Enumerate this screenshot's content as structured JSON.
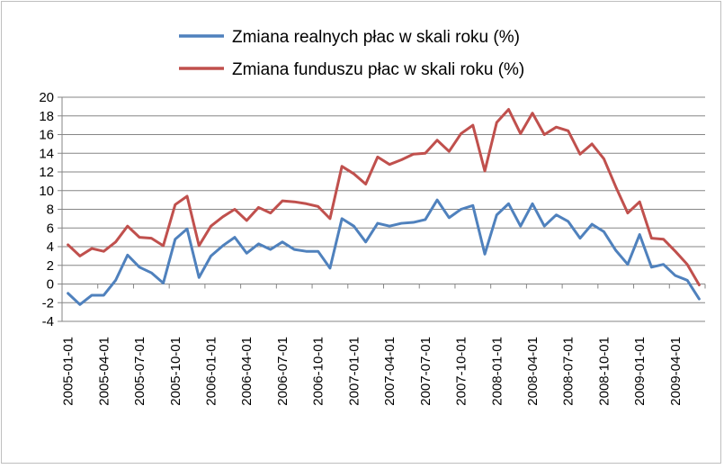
{
  "chart_data": {
    "type": "line",
    "title": "",
    "xlabel": "",
    "ylabel": "",
    "ylim": [
      -4,
      20
    ],
    "yticks": [
      -4,
      -2,
      0,
      2,
      4,
      6,
      8,
      10,
      12,
      14,
      16,
      18,
      20
    ],
    "grid": true,
    "legend_position": "top",
    "x": [
      "2005-01-01",
      "2005-02-01",
      "2005-03-01",
      "2005-04-01",
      "2005-05-01",
      "2005-06-01",
      "2005-07-01",
      "2005-08-01",
      "2005-09-01",
      "2005-10-01",
      "2005-11-01",
      "2005-12-01",
      "2006-01-01",
      "2006-02-01",
      "2006-03-01",
      "2006-04-01",
      "2006-05-01",
      "2006-06-01",
      "2006-07-01",
      "2006-08-01",
      "2006-09-01",
      "2006-10-01",
      "2006-11-01",
      "2006-12-01",
      "2007-01-01",
      "2007-02-01",
      "2007-03-01",
      "2007-04-01",
      "2007-05-01",
      "2007-06-01",
      "2007-07-01",
      "2007-08-01",
      "2007-09-01",
      "2007-10-01",
      "2007-11-01",
      "2007-12-01",
      "2008-01-01",
      "2008-02-01",
      "2008-03-01",
      "2008-04-01",
      "2008-05-01",
      "2008-06-01",
      "2008-07-01",
      "2008-08-01",
      "2008-09-01",
      "2008-10-01",
      "2008-11-01",
      "2008-12-01",
      "2009-01-01",
      "2009-02-01",
      "2009-03-01",
      "2009-04-01",
      "2009-05-01",
      "2009-06-01"
    ],
    "xtick_labels": [
      "2005-01-01",
      "2005-04-01",
      "2005-07-01",
      "2005-10-01",
      "2006-01-01",
      "2006-04-01",
      "2006-07-01",
      "2006-10-01",
      "2007-01-01",
      "2007-04-01",
      "2007-07-01",
      "2007-10-01",
      "2008-01-01",
      "2008-04-01",
      "2008-07-01",
      "2008-10-01",
      "2009-01-01",
      "2009-04-01"
    ],
    "series": [
      {
        "name": "Zmiana realnych płac w skali roku (%)",
        "color": "#4f81bd",
        "values": [
          -1.0,
          -2.2,
          -1.2,
          -1.2,
          0.4,
          3.1,
          1.8,
          1.2,
          0.1,
          4.8,
          5.9,
          0.7,
          3.0,
          4.1,
          5.0,
          3.3,
          4.3,
          3.7,
          4.5,
          3.7,
          3.5,
          3.5,
          1.7,
          7.0,
          6.2,
          4.5,
          6.5,
          6.2,
          6.5,
          6.6,
          6.9,
          9.0,
          7.1,
          8.0,
          8.4,
          3.2,
          7.4,
          8.6,
          6.2,
          8.6,
          6.2,
          7.4,
          6.7,
          4.9,
          6.4,
          5.6,
          3.6,
          2.1,
          5.3,
          1.8,
          2.1,
          0.9,
          0.4,
          -1.6
        ]
      },
      {
        "name": "Zmiana funduszu płac w skali roku (%)",
        "color": "#c0504d",
        "values": [
          4.2,
          3.0,
          3.8,
          3.5,
          4.5,
          6.2,
          5.0,
          4.9,
          4.1,
          8.5,
          9.4,
          4.1,
          6.2,
          7.2,
          8.0,
          6.8,
          8.2,
          7.6,
          8.9,
          8.8,
          8.6,
          8.3,
          7.0,
          12.6,
          11.8,
          10.7,
          13.6,
          12.8,
          13.3,
          13.9,
          14.0,
          15.4,
          14.2,
          16.1,
          17.0,
          12.1,
          17.3,
          18.7,
          16.1,
          18.3,
          16.0,
          16.8,
          16.4,
          13.9,
          15.0,
          13.4,
          10.4,
          7.6,
          8.8,
          4.9,
          4.8,
          3.5,
          2.1,
          -0.1
        ]
      }
    ]
  }
}
